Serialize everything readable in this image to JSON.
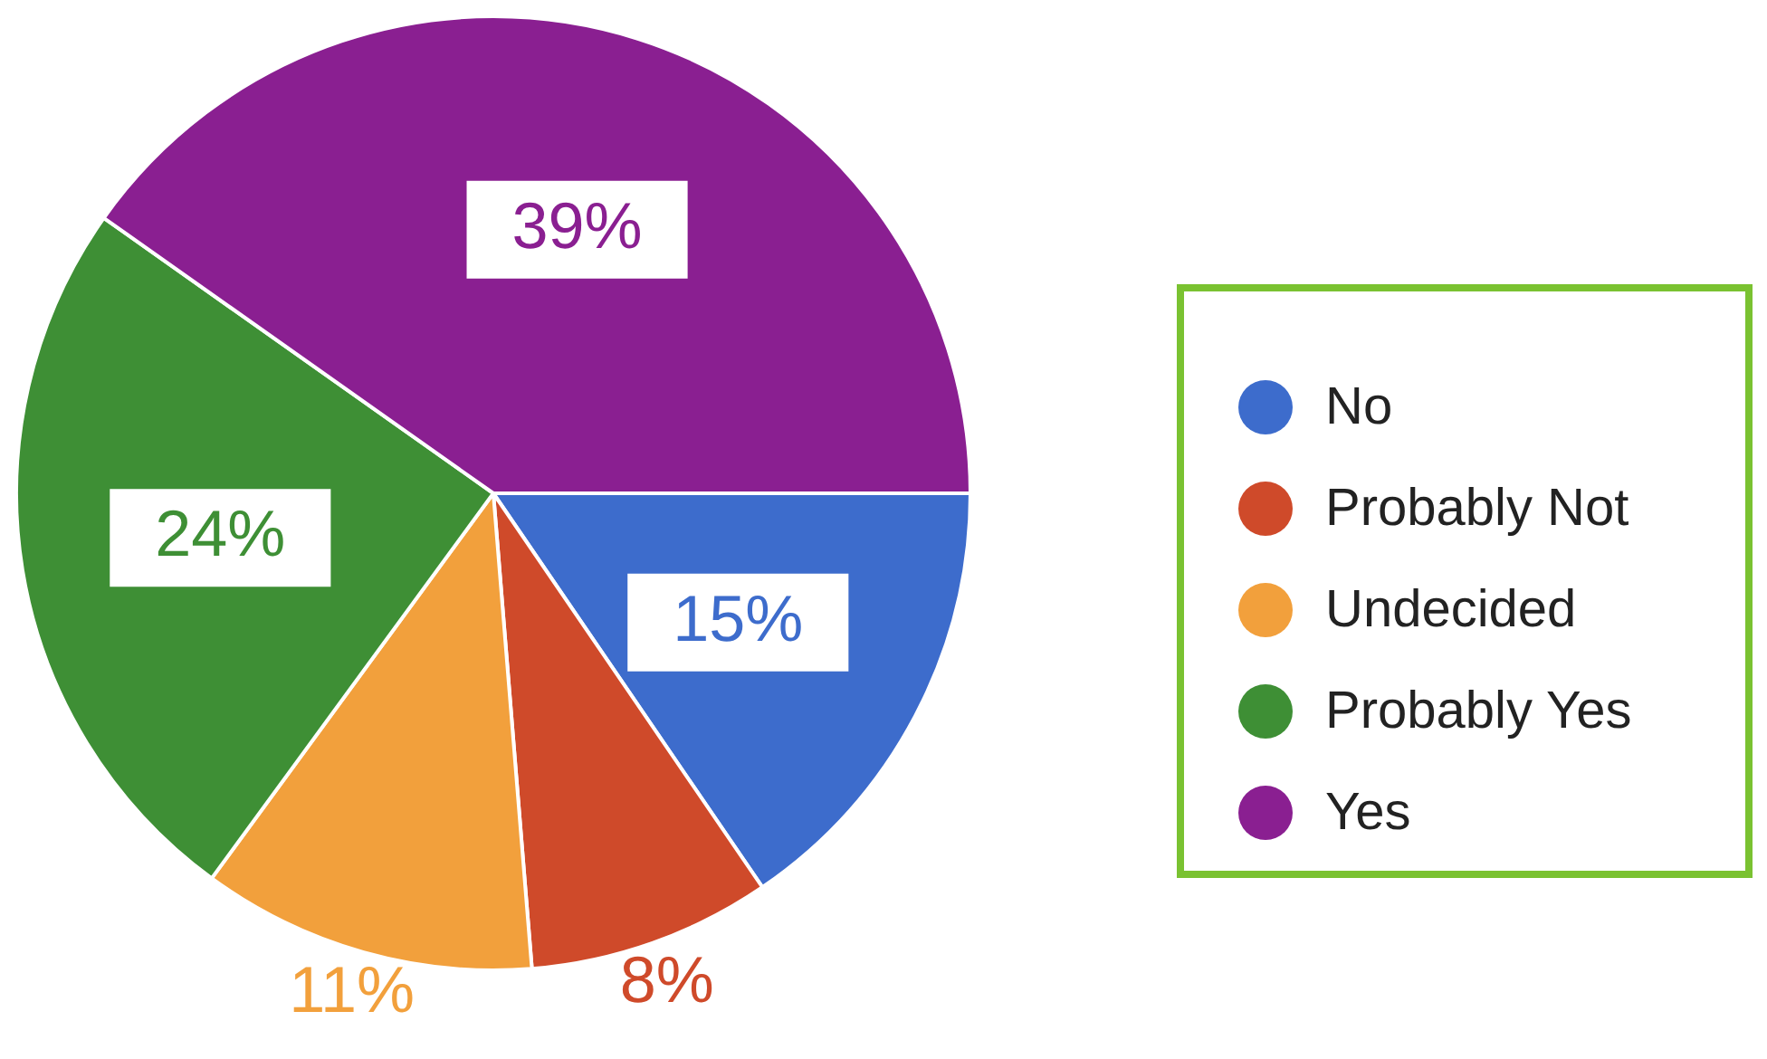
{
  "chart_data": {
    "type": "pie",
    "categories": [
      "No",
      "Probably Not",
      "Undecided",
      "Probably Yes",
      "Yes"
    ],
    "values": [
      15,
      8,
      11,
      24,
      39
    ],
    "colors": [
      "#3d6ccc",
      "#cf4a2a",
      "#f2a03c",
      "#3e8f35",
      "#8a1f91"
    ],
    "value_labels": [
      "15%",
      "8%",
      "11%",
      "24%",
      "39%"
    ],
    "legend": "right"
  }
}
